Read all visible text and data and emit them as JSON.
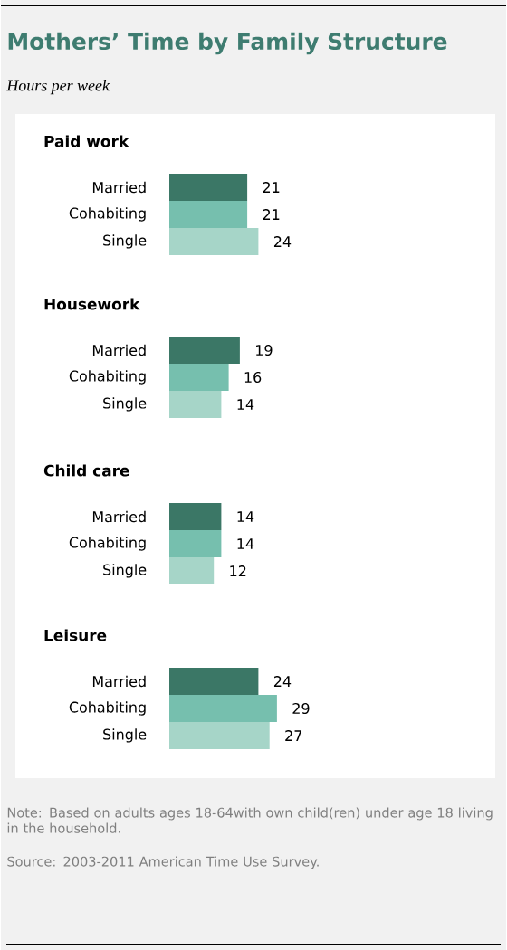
{
  "chart_data": [
    {
      "type": "bar",
      "orientation": "horizontal",
      "title": "Paid work",
      "annotations": [
        "Mothers’ Time by Family Structure",
        "Hours per week"
      ],
      "categories": [
        "Married",
        "Cohabiting",
        "Single"
      ],
      "values": [
        21,
        21,
        24
      ],
      "colors": [
        "#3b7766",
        "#76bfae",
        "#a6d5c8"
      ],
      "data_labels": true
    },
    {
      "type": "bar",
      "orientation": "horizontal",
      "title": "Housework",
      "categories": [
        "Married",
        "Cohabiting",
        "Single"
      ],
      "values": [
        19,
        16,
        14
      ],
      "colors": [
        "#3b7766",
        "#76bfae",
        "#a6d5c8"
      ],
      "data_labels": true
    },
    {
      "type": "bar",
      "orientation": "horizontal",
      "title": "Child care",
      "categories": [
        "Married",
        "Cohabiting",
        "Single"
      ],
      "values": [
        14,
        14,
        12
      ],
      "colors": [
        "#3b7766",
        "#76bfae",
        "#a6d5c8"
      ],
      "data_labels": true
    },
    {
      "type": "bar",
      "orientation": "horizontal",
      "title": "Leisure",
      "annotations": [
        "Note: Based on adults ages 18-64with own child(ren) under age 18 living in the household.",
        "Source: 2003-2011 American Time Use Survey."
      ],
      "categories": [
        "Married",
        "Cohabiting",
        "Single"
      ],
      "values": [
        24,
        29,
        27
      ],
      "colors": [
        "#3b7766",
        "#76bfae",
        "#a6d5c8"
      ],
      "data_labels": true
    }
  ]
}
